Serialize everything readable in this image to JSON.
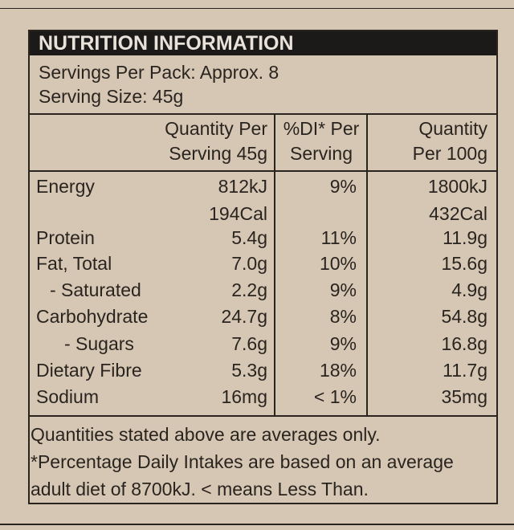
{
  "title": "NUTRITION INFORMATION",
  "servings_per_pack": "Servings Per Pack: Approx. 8",
  "serving_size": "Serving Size: 45g",
  "columns": [
    [
      "Quantity Per",
      "Serving 45g"
    ],
    [
      "%DI* Per",
      "Serving"
    ],
    [
      "Quantity",
      "Per 100g"
    ]
  ],
  "rows": [
    {
      "label": "Energy",
      "per_serving": "812kJ",
      "di": "9%",
      "per_100g": "1800kJ"
    },
    {
      "per_serving": "194Cal",
      "per_100g": "432Cal"
    },
    {
      "label": "Protein",
      "per_serving": "5.4g",
      "di": "11%",
      "per_100g": "11.9g"
    },
    {
      "label": "Fat,  Total",
      "per_serving": "7.0g",
      "di": "10%",
      "per_100g": "15.6g"
    },
    {
      "label": "- Saturated",
      "per_serving": "2.2g",
      "di": "9%",
      "per_100g": "4.9g"
    },
    {
      "label": "Carbohydrate",
      "per_serving": "24.7g",
      "di": "8%",
      "per_100g": "54.8g"
    },
    {
      "label": "- Sugars",
      "per_serving": "7.6g",
      "di": "9%",
      "per_100g": "16.8g"
    },
    {
      "label": "Dietary Fibre",
      "per_serving": "5.3g",
      "di": "18%",
      "per_100g": "11.7g"
    },
    {
      "label": "Sodium",
      "per_serving": "16mg",
      "di": "< 1%",
      "per_100g": "35mg"
    }
  ],
  "footnotes": [
    "Quantities stated above are averages only.",
    "*Percentage Daily Intakes are based on an average",
    "adult diet of 8700kJ. < means Less Than."
  ]
}
